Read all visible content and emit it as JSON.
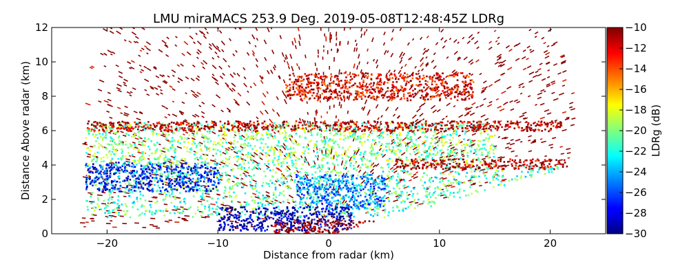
{
  "chart_data": {
    "type": "heatmap",
    "title": "LMU miraMACS 253.9 Deg. 2019-05-08T12:48:45Z  LDRg",
    "xlabel": "Distance from radar (km)",
    "ylabel": "Distance Above radar  (km)",
    "xlim": [
      -25,
      25
    ],
    "ylim": [
      0,
      12
    ],
    "x_ticks": [
      -20,
      -10,
      0,
      10,
      20
    ],
    "y_ticks": [
      0,
      2,
      4,
      6,
      8,
      10,
      12
    ],
    "grid": false,
    "colorbar": {
      "label": "LDRg (dB)",
      "range": [
        -30,
        -10
      ],
      "ticks": [
        -30,
        -28,
        -26,
        -24,
        -22,
        -20,
        -18,
        -16,
        -14,
        -12,
        -10
      ],
      "colormap": "jet"
    },
    "echo_regions": [
      {
        "x_range": [
          -22,
          21.5
        ],
        "y_range": [
          1.0,
          4.0
        ],
        "ldr_db": -21
      },
      {
        "x_range": [
          -22,
          -10
        ],
        "y_range": [
          2.5,
          4.2
        ],
        "ldr_db": -27
      },
      {
        "x_range": [
          -3,
          5
        ],
        "y_range": [
          1.5,
          3.5
        ],
        "ldr_db": -25
      },
      {
        "x_range": [
          -22,
          15
        ],
        "y_range": [
          4.0,
          6.5
        ],
        "ldr_db": -20
      },
      {
        "x_range": [
          -10,
          2
        ],
        "y_range": [
          0.2,
          1.6
        ],
        "ldr_db": -29
      },
      {
        "x_range": [
          -5,
          5
        ],
        "y_range": [
          0.0,
          0.8
        ],
        "ldr_db": -10
      },
      {
        "x_range": [
          -4,
          13
        ],
        "y_range": [
          7.8,
          9.4
        ],
        "ldr_db": -12
      },
      {
        "x_range": [
          -22,
          21
        ],
        "y_range": [
          6.0,
          6.6
        ],
        "ldr_db": -11
      },
      {
        "x_range": [
          6,
          21.5
        ],
        "y_range": [
          3.8,
          4.4
        ],
        "ldr_db": -11
      }
    ]
  }
}
